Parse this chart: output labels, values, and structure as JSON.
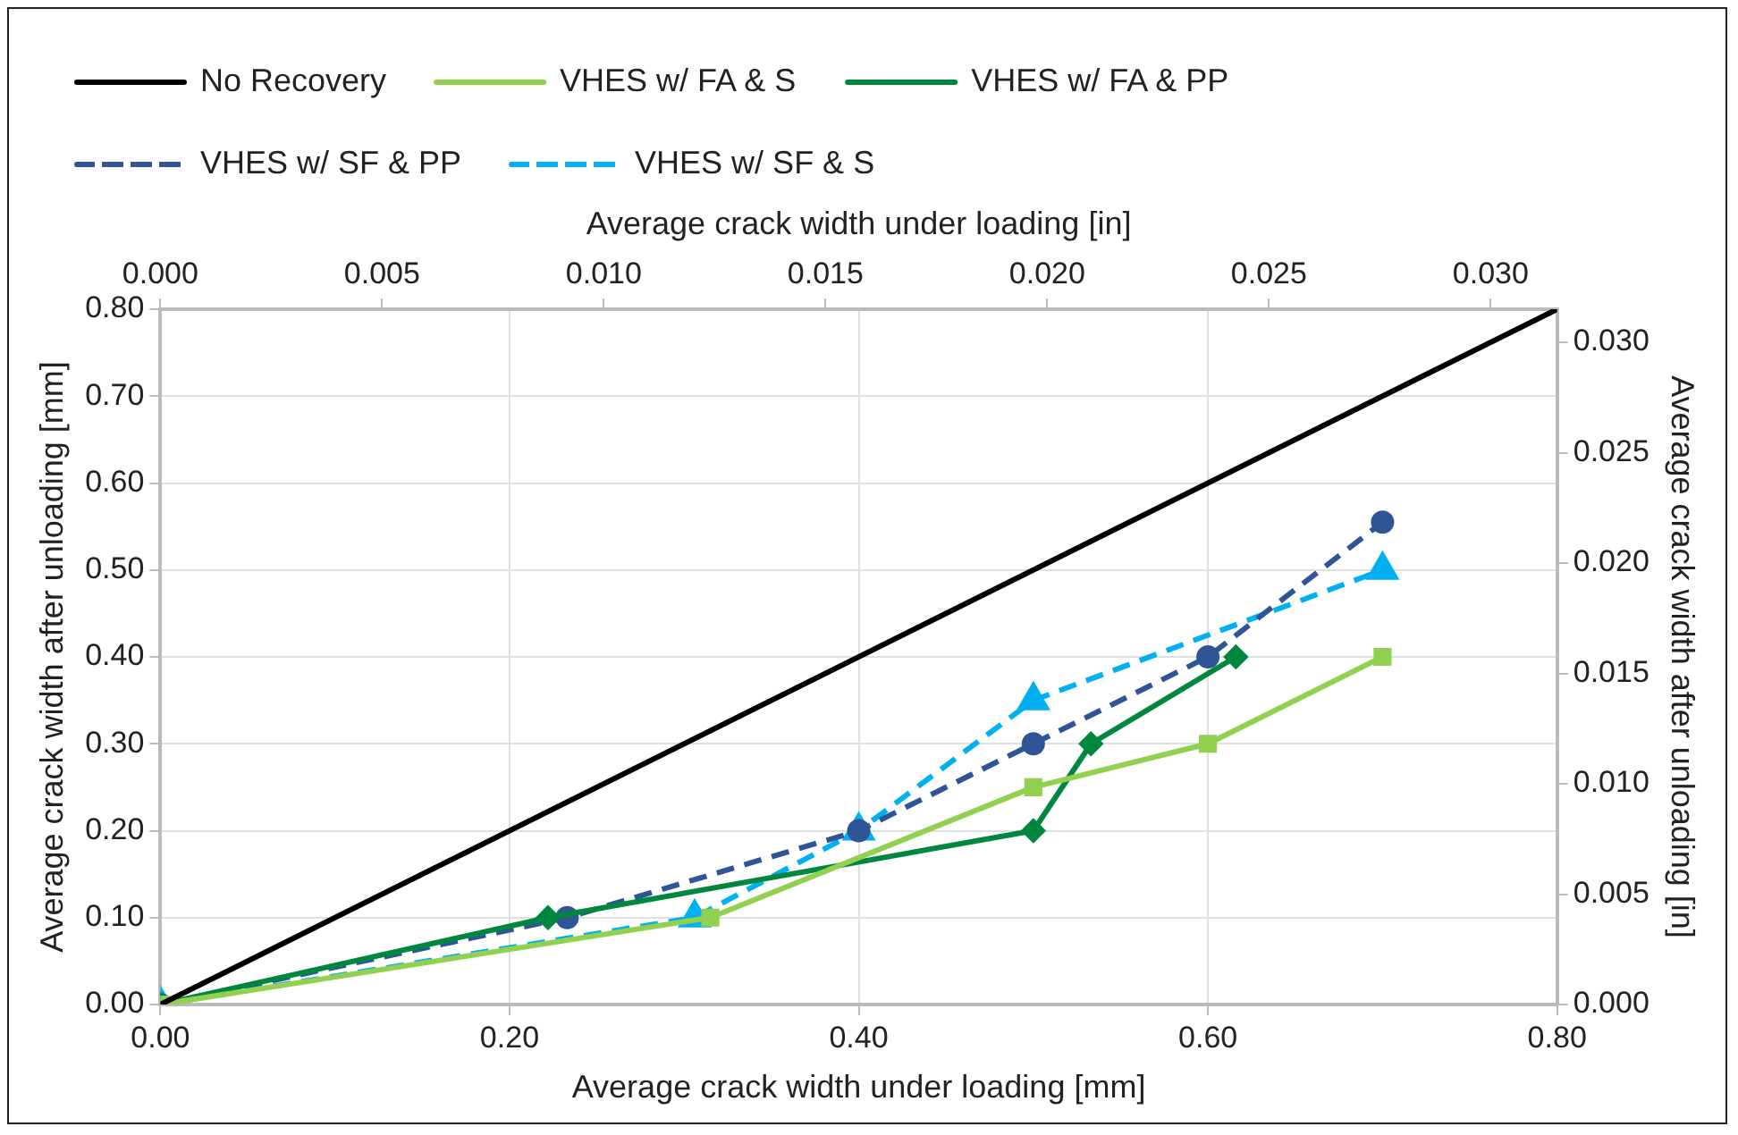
{
  "chart_data": {
    "type": "line",
    "xlabel": "Average crack width under loading [mm]",
    "ylabel": "Average crack width after unloading [mm]",
    "x2label": "Average crack width under loading [in]",
    "y2label": "Average crack width after unloading [in]",
    "xlim": [
      0,
      0.8
    ],
    "xticks": [
      {
        "value": 0,
        "label": "0.00"
      },
      {
        "value": 0.2,
        "label": "0.20"
      },
      {
        "value": 0.4,
        "label": "0.40"
      },
      {
        "value": 0.6,
        "label": "0.60"
      },
      {
        "value": 0.8,
        "label": "0.80"
      }
    ],
    "ylim": [
      0,
      0.8
    ],
    "yticks": [
      {
        "value": 0,
        "label": "0.00"
      },
      {
        "value": 0.1,
        "label": "0.10"
      },
      {
        "value": 0.2,
        "label": "0.20"
      },
      {
        "value": 0.3,
        "label": "0.30"
      },
      {
        "value": 0.4,
        "label": "0.40"
      },
      {
        "value": 0.5,
        "label": "0.50"
      },
      {
        "value": 0.6,
        "label": "0.60"
      },
      {
        "value": 0.7,
        "label": "0.70"
      },
      {
        "value": 0.8,
        "label": "0.80"
      }
    ],
    "x2lim": [
      0,
      0.0315
    ],
    "x2ticks": [
      {
        "value": 0,
        "label": "0.000"
      },
      {
        "value": 0.005,
        "label": "0.005"
      },
      {
        "value": 0.01,
        "label": "0.010"
      },
      {
        "value": 0.015,
        "label": "0.015"
      },
      {
        "value": 0.02,
        "label": "0.020"
      },
      {
        "value": 0.025,
        "label": "0.025"
      },
      {
        "value": 0.03,
        "label": "0.030"
      }
    ],
    "y2lim": [
      0,
      0.0315
    ],
    "y2ticks": [
      {
        "value": 0,
        "label": "0.000"
      },
      {
        "value": 0.005,
        "label": "0.005"
      },
      {
        "value": 0.01,
        "label": "0.010"
      },
      {
        "value": 0.015,
        "label": "0.015"
      },
      {
        "value": 0.02,
        "label": "0.020"
      },
      {
        "value": 0.025,
        "label": "0.025"
      },
      {
        "value": 0.03,
        "label": "0.030"
      }
    ],
    "grid": true,
    "legend": "top",
    "series": [
      {
        "name": "No Recovery",
        "color": "#000000",
        "x": [
          0,
          0.8
        ],
        "values": [
          0,
          0.8
        ],
        "marker": "none",
        "line_style": "solid"
      },
      {
        "name": "VHES w/ FA & S",
        "color": "#92d050",
        "x": [
          0,
          0.315,
          0.5,
          0.6,
          0.7
        ],
        "values": [
          0,
          0.1,
          0.25,
          0.3,
          0.4
        ],
        "marker": "square",
        "line_style": "solid"
      },
      {
        "name": "VHES w/ FA & PP",
        "color": "#00873e",
        "x": [
          0,
          0.222,
          0.5,
          0.533,
          0.616
        ],
        "values": [
          0,
          0.1,
          0.2,
          0.3,
          0.4
        ],
        "marker": "diamond",
        "line_style": "solid"
      },
      {
        "name": "VHES w/ SF & PP",
        "color": "#2f5597",
        "x": [
          0,
          0.233,
          0.4,
          0.5,
          0.6,
          0.7
        ],
        "values": [
          0,
          0.1,
          0.2,
          0.3,
          0.4,
          0.555
        ],
        "marker": "circle",
        "line_style": "dashed"
      },
      {
        "name": "VHES w/ SF & S",
        "color": "#00b0f0",
        "x": [
          0,
          0.306,
          0.4,
          0.5,
          0.7
        ],
        "values": [
          0,
          0.1,
          0.2,
          0.35,
          0.5
        ],
        "marker": "triangle",
        "line_style": "dashed"
      }
    ]
  }
}
